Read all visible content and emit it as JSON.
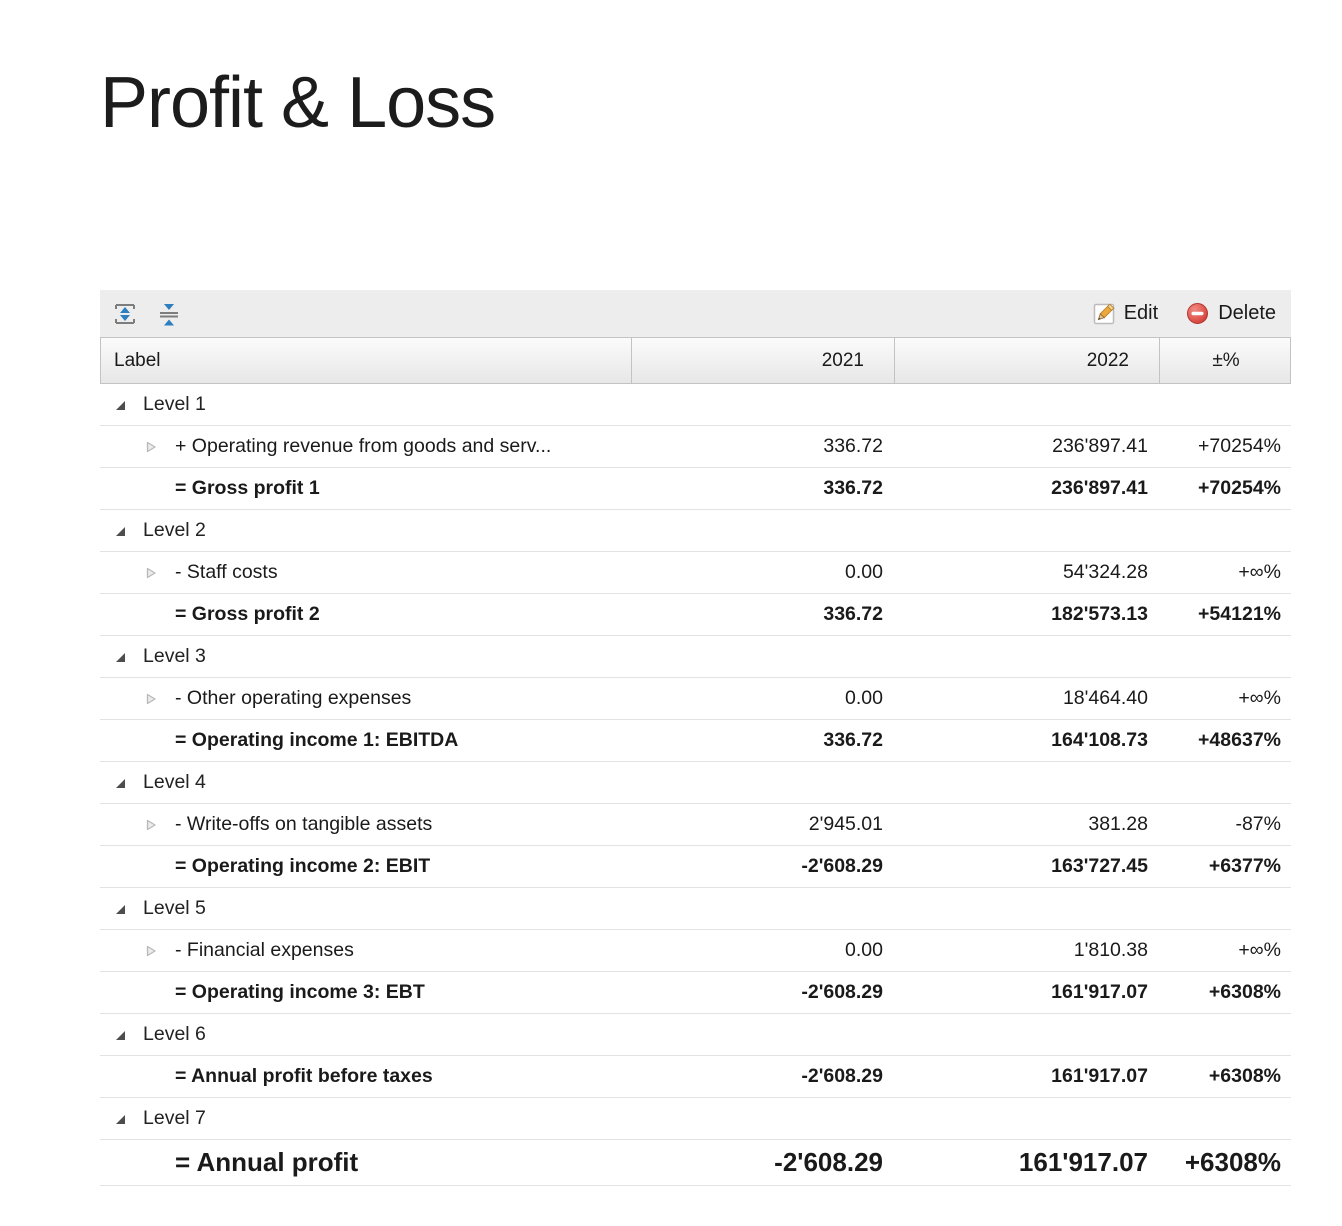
{
  "page": {
    "title": "Profit & Loss"
  },
  "toolbar": {
    "expand_all_icon": "expand-all-icon",
    "collapse_all_icon": "collapse-all-icon",
    "edit_label": "Edit",
    "delete_label": "Delete"
  },
  "table": {
    "columns": [
      "Label",
      "2021",
      "2022",
      "±%"
    ],
    "rows": [
      {
        "type": "group",
        "label": "Level 1"
      },
      {
        "type": "item",
        "label": "+ Operating revenue from goods and serv...",
        "y2021": "336.72",
        "y2022": "236'897.41",
        "pct": "+70254%"
      },
      {
        "type": "total",
        "label": "= Gross profit 1",
        "y2021": "336.72",
        "y2022": "236'897.41",
        "pct": "+70254%"
      },
      {
        "type": "group",
        "label": "Level 2"
      },
      {
        "type": "item",
        "label": "- Staff costs",
        "y2021": "0.00",
        "y2022": "54'324.28",
        "pct": "+∞%"
      },
      {
        "type": "total",
        "label": "= Gross profit 2",
        "y2021": "336.72",
        "y2022": "182'573.13",
        "pct": "+54121%"
      },
      {
        "type": "group",
        "label": "Level 3"
      },
      {
        "type": "item",
        "label": "- Other operating expenses",
        "y2021": "0.00",
        "y2022": "18'464.40",
        "pct": "+∞%"
      },
      {
        "type": "total",
        "label": "= Operating income 1: EBITDA",
        "y2021": "336.72",
        "y2022": "164'108.73",
        "pct": "+48637%"
      },
      {
        "type": "group",
        "label": "Level 4"
      },
      {
        "type": "item",
        "label": "- Write-offs on tangible assets",
        "y2021": "2'945.01",
        "y2022": "381.28",
        "pct": "-87%"
      },
      {
        "type": "total",
        "label": "= Operating income 2: EBIT",
        "y2021": "-2'608.29",
        "y2022": "163'727.45",
        "pct": "+6377%"
      },
      {
        "type": "group",
        "label": "Level 5"
      },
      {
        "type": "item",
        "label": "- Financial expenses",
        "y2021": "0.00",
        "y2022": "1'810.38",
        "pct": "+∞%"
      },
      {
        "type": "total",
        "label": "= Operating income 3: EBT",
        "y2021": "-2'608.29",
        "y2022": "161'917.07",
        "pct": "+6308%"
      },
      {
        "type": "group",
        "label": "Level 6"
      },
      {
        "type": "total",
        "label": "= Annual profit before taxes",
        "y2021": "-2'608.29",
        "y2022": "161'917.07",
        "pct": "+6308%"
      },
      {
        "type": "group",
        "label": "Level 7"
      },
      {
        "type": "grand",
        "label": "= Annual profit",
        "y2021": "-2'608.29",
        "y2022": "161'917.07",
        "pct": "+6308%"
      }
    ]
  },
  "colors": {
    "accent_blue": "#2d7fc0",
    "delete_red": "#d9534f",
    "pencil_orange": "#eda93c",
    "toolbar_bg": "#ededed",
    "header_border": "#c3c3c3",
    "row_separator": "#e3e3e3",
    "text": "#1a1a1a"
  }
}
